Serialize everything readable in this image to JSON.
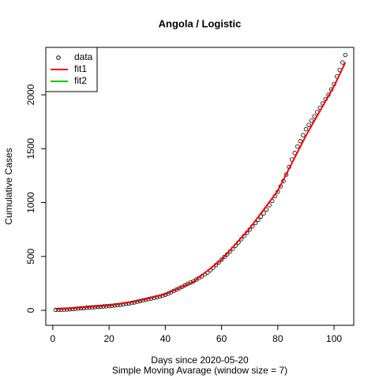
{
  "chart_data": {
    "type": "scatter",
    "title": "Angola / Logistic",
    "x_label": "Days since 2020-05-20",
    "subtitle": "Simple Moving Avarage (window size = 7)",
    "y_label": "Cumulative Cases",
    "xlim": [
      -2.5,
      107
    ],
    "ylim": [
      -139,
      2440
    ],
    "xticks": [
      0,
      20,
      40,
      60,
      80,
      100
    ],
    "yticks": [
      0,
      500,
      1000,
      1500,
      2000
    ],
    "legend_position": "topleft",
    "series": [
      {
        "name": "data",
        "color": "#000000",
        "kind": "points",
        "x": [
          1,
          2,
          3,
          4,
          5,
          6,
          7,
          8,
          9,
          10,
          11,
          12,
          13,
          14,
          15,
          16,
          17,
          18,
          19,
          20,
          21,
          22,
          23,
          24,
          25,
          26,
          27,
          28,
          29,
          30,
          31,
          32,
          33,
          34,
          35,
          36,
          37,
          38,
          39,
          40,
          41,
          42,
          43,
          44,
          45,
          46,
          47,
          48,
          49,
          50,
          51,
          52,
          53,
          54,
          55,
          56,
          57,
          58,
          59,
          60,
          61,
          62,
          63,
          64,
          65,
          66,
          67,
          68,
          69,
          70,
          71,
          72,
          73,
          74,
          75,
          76,
          77,
          78,
          79,
          80,
          81,
          82,
          83,
          84,
          85,
          86,
          87,
          88,
          89,
          90,
          91,
          92,
          93,
          94,
          95,
          96,
          97,
          98,
          99,
          100,
          101,
          102,
          103,
          104
        ],
        "values": [
          4,
          5,
          6,
          7,
          8,
          10,
          12,
          14,
          17,
          19,
          21,
          24,
          26,
          28,
          30,
          32,
          34,
          36,
          38,
          40,
          43,
          46,
          49,
          52,
          56,
          60,
          64,
          69,
          74,
          80,
          86,
          92,
          98,
          104,
          110,
          116,
          122,
          128,
          136,
          145,
          155,
          167,
          180,
          193,
          206,
          219,
          232,
          245,
          258,
          270,
          285,
          300,
          316,
          333,
          350,
          372,
          395,
          420,
          445,
          470,
          495,
          520,
          545,
          572,
          600,
          630,
          660,
          690,
          720,
          750,
          780,
          810,
          840,
          870,
          900,
          935,
          975,
          1015,
          1060,
          1100,
          1150,
          1200,
          1260,
          1330,
          1400,
          1460,
          1520,
          1570,
          1625,
          1680,
          1720,
          1760,
          1800,
          1840,
          1880,
          1920,
          1960,
          2000,
          2050,
          2100,
          2170,
          2230,
          2300,
          2370
        ]
      },
      {
        "name": "fit1",
        "color": "#ff0000",
        "kind": "line",
        "x": [
          1,
          10,
          20,
          30,
          40,
          50,
          60,
          70,
          80,
          90,
          100,
          104
        ],
        "values": [
          10,
          25,
          45,
          85,
          150,
          265,
          470,
          760,
          1110,
          1620,
          2080,
          2300
        ]
      },
      {
        "name": "fit2",
        "color": "#00cd00",
        "kind": "line"
      }
    ]
  }
}
